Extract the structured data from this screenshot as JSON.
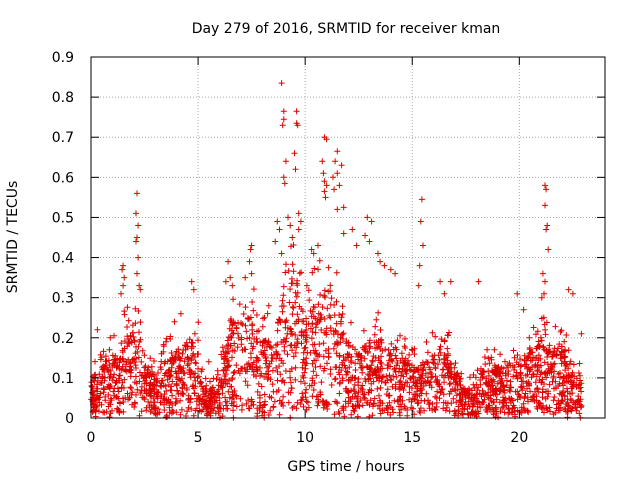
{
  "chart_data": {
    "type": "scatter",
    "title": "Day 279 of 2016, SRMTID for receiver kman",
    "xlabel": "GPS time / hours",
    "ylabel": "SRMTID / TECUs",
    "xlim": [
      0,
      24
    ],
    "ylim": [
      0,
      0.9
    ],
    "x_ticks": [
      0,
      5,
      10,
      15,
      20
    ],
    "y_ticks": [
      0,
      0.1,
      0.2,
      0.3,
      0.4,
      0.5,
      0.6,
      0.7,
      0.8,
      0.9
    ],
    "grid": true,
    "marker": "+",
    "series": [
      {
        "name": "SRMTID",
        "color": "#e00000",
        "profile": [
          [
            0.0,
            0.06
          ],
          [
            0.5,
            0.08
          ],
          [
            1.0,
            0.09
          ],
          [
            1.5,
            0.12
          ],
          [
            2.2,
            0.14
          ],
          [
            2.6,
            0.08
          ],
          [
            3.0,
            0.07
          ],
          [
            3.5,
            0.09
          ],
          [
            4.0,
            0.1
          ],
          [
            4.5,
            0.12
          ],
          [
            5.0,
            0.12
          ],
          [
            5.4,
            0.04
          ],
          [
            6.0,
            0.06
          ],
          [
            6.5,
            0.14
          ],
          [
            7.0,
            0.15
          ],
          [
            7.5,
            0.16
          ],
          [
            8.0,
            0.12
          ],
          [
            8.5,
            0.12
          ],
          [
            9.0,
            0.2
          ],
          [
            9.5,
            0.22
          ],
          [
            10.0,
            0.15
          ],
          [
            10.5,
            0.18
          ],
          [
            11.0,
            0.2
          ],
          [
            11.5,
            0.18
          ],
          [
            12.0,
            0.12
          ],
          [
            12.5,
            0.1
          ],
          [
            13.0,
            0.12
          ],
          [
            13.5,
            0.12
          ],
          [
            14.0,
            0.1
          ],
          [
            14.5,
            0.1
          ],
          [
            15.0,
            0.08
          ],
          [
            15.5,
            0.08
          ],
          [
            16.0,
            0.1
          ],
          [
            16.5,
            0.12
          ],
          [
            17.0,
            0.08
          ],
          [
            17.5,
            0.04
          ],
          [
            18.0,
            0.06
          ],
          [
            18.5,
            0.08
          ],
          [
            19.0,
            0.08
          ],
          [
            19.5,
            0.08
          ],
          [
            20.0,
            0.08
          ],
          [
            20.5,
            0.1
          ],
          [
            21.0,
            0.12
          ],
          [
            21.5,
            0.1
          ],
          [
            22.0,
            0.12
          ],
          [
            22.5,
            0.07
          ],
          [
            22.9,
            0.06
          ]
        ],
        "points": [
          [
            8.9,
            0.835
          ],
          [
            9.0,
            0.765
          ],
          [
            9.0,
            0.745
          ],
          [
            8.95,
            0.73
          ],
          [
            9.6,
            0.765
          ],
          [
            9.6,
            0.735
          ],
          [
            9.65,
            0.73
          ],
          [
            9.1,
            0.64
          ],
          [
            9.5,
            0.66
          ],
          [
            9.55,
            0.62
          ],
          [
            9.0,
            0.6
          ],
          [
            9.05,
            0.585
          ],
          [
            10.9,
            0.7
          ],
          [
            11.0,
            0.695
          ],
          [
            10.8,
            0.64
          ],
          [
            10.85,
            0.61
          ],
          [
            10.9,
            0.59
          ],
          [
            11.0,
            0.58
          ],
          [
            10.9,
            0.565
          ],
          [
            10.95,
            0.55
          ],
          [
            11.5,
            0.665
          ],
          [
            11.4,
            0.64
          ],
          [
            11.7,
            0.63
          ],
          [
            11.5,
            0.61
          ],
          [
            11.3,
            0.6
          ],
          [
            11.6,
            0.58
          ],
          [
            11.35,
            0.57
          ],
          [
            11.8,
            0.525
          ],
          [
            11.5,
            0.52
          ],
          [
            12.9,
            0.5
          ],
          [
            13.1,
            0.49
          ],
          [
            12.8,
            0.455
          ],
          [
            13.0,
            0.44
          ],
          [
            2.15,
            0.56
          ],
          [
            2.1,
            0.51
          ],
          [
            2.2,
            0.48
          ],
          [
            2.15,
            0.45
          ],
          [
            2.1,
            0.44
          ],
          [
            2.2,
            0.4
          ],
          [
            2.15,
            0.36
          ],
          [
            2.25,
            0.33
          ],
          [
            2.3,
            0.32
          ],
          [
            1.5,
            0.38
          ],
          [
            1.45,
            0.37
          ],
          [
            1.55,
            0.35
          ],
          [
            1.5,
            0.33
          ],
          [
            1.4,
            0.31
          ],
          [
            15.45,
            0.545
          ],
          [
            15.4,
            0.49
          ],
          [
            15.5,
            0.43
          ],
          [
            15.35,
            0.38
          ],
          [
            15.3,
            0.33
          ],
          [
            21.2,
            0.58
          ],
          [
            21.25,
            0.57
          ],
          [
            21.2,
            0.53
          ],
          [
            21.3,
            0.48
          ],
          [
            21.25,
            0.47
          ],
          [
            21.35,
            0.42
          ],
          [
            21.1,
            0.36
          ],
          [
            21.2,
            0.34
          ],
          [
            21.15,
            0.31
          ],
          [
            21.05,
            0.3
          ],
          [
            7.5,
            0.43
          ],
          [
            7.45,
            0.42
          ],
          [
            7.4,
            0.39
          ],
          [
            7.5,
            0.36
          ],
          [
            7.2,
            0.35
          ],
          [
            6.4,
            0.39
          ],
          [
            6.5,
            0.35
          ],
          [
            6.6,
            0.33
          ],
          [
            6.3,
            0.34
          ],
          [
            8.7,
            0.49
          ],
          [
            8.8,
            0.47
          ],
          [
            8.6,
            0.44
          ],
          [
            8.9,
            0.41
          ],
          [
            9.2,
            0.5
          ],
          [
            9.3,
            0.48
          ],
          [
            9.4,
            0.45
          ],
          [
            9.7,
            0.51
          ],
          [
            9.8,
            0.49
          ],
          [
            9.7,
            0.47
          ],
          [
            10.3,
            0.42
          ],
          [
            10.4,
            0.41
          ],
          [
            10.6,
            0.43
          ],
          [
            11.8,
            0.46
          ],
          [
            12.2,
            0.47
          ],
          [
            12.4,
            0.43
          ],
          [
            13.4,
            0.41
          ],
          [
            13.5,
            0.39
          ],
          [
            13.7,
            0.38
          ],
          [
            14.0,
            0.37
          ],
          [
            14.2,
            0.36
          ],
          [
            16.3,
            0.34
          ],
          [
            16.8,
            0.34
          ],
          [
            16.5,
            0.31
          ],
          [
            18.1,
            0.34
          ],
          [
            19.9,
            0.31
          ],
          [
            20.2,
            0.27
          ],
          [
            22.3,
            0.32
          ],
          [
            22.5,
            0.31
          ],
          [
            22.9,
            0.21
          ],
          [
            4.7,
            0.34
          ],
          [
            4.8,
            0.32
          ],
          [
            3.9,
            0.24
          ],
          [
            4.2,
            0.26
          ],
          [
            0.3,
            0.22
          ],
          [
            0.9,
            0.2
          ],
          [
            5.5,
            0.14
          ],
          [
            8.3,
            0.28
          ],
          [
            8.1,
            0.25
          ]
        ]
      }
    ]
  }
}
